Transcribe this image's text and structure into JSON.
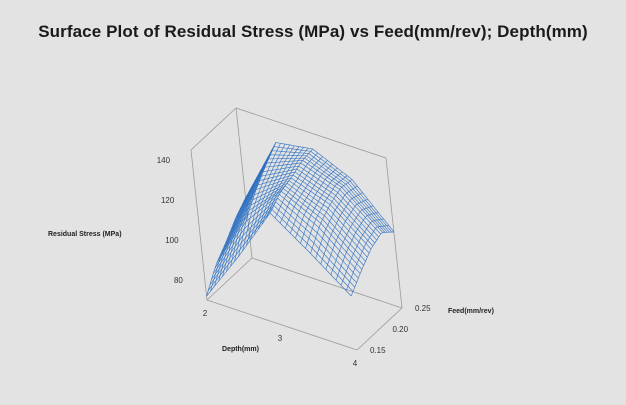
{
  "chart_data": {
    "type": "surface",
    "title": "Surface Plot of Residual Stress (MPa) vs Feed(mm/rev); Depth(mm)",
    "xlabel": "Depth(mm)",
    "ylabel": "Feed(mm/rev)",
    "zlabel": "Residual Stress (MPa)",
    "x_ticks": [
      "2",
      "3",
      "4"
    ],
    "y_ticks": [
      "0.15",
      "0.20",
      "0.25"
    ],
    "z_ticks": [
      "80",
      "100",
      "120",
      "140"
    ],
    "xlim": [
      2,
      4
    ],
    "ylim": [
      0.15,
      0.25
    ],
    "zlim": [
      70,
      145
    ],
    "grid": false,
    "wire_color": "#2c6fbf",
    "surface": {
      "x": [
        2.0,
        2.5,
        3.0,
        3.5,
        4.0
      ],
      "y": [
        0.15,
        0.175,
        0.2,
        0.225,
        0.25
      ],
      "z": [
        [
          72,
          98,
          126,
          112,
          97
        ],
        [
          82,
          112,
          131,
          121,
          104
        ],
        [
          88,
          121,
          133,
          126,
          110
        ],
        [
          95,
          128,
          136,
          129,
          113
        ],
        [
          100,
          134,
          137,
          128,
          108
        ]
      ]
    }
  }
}
